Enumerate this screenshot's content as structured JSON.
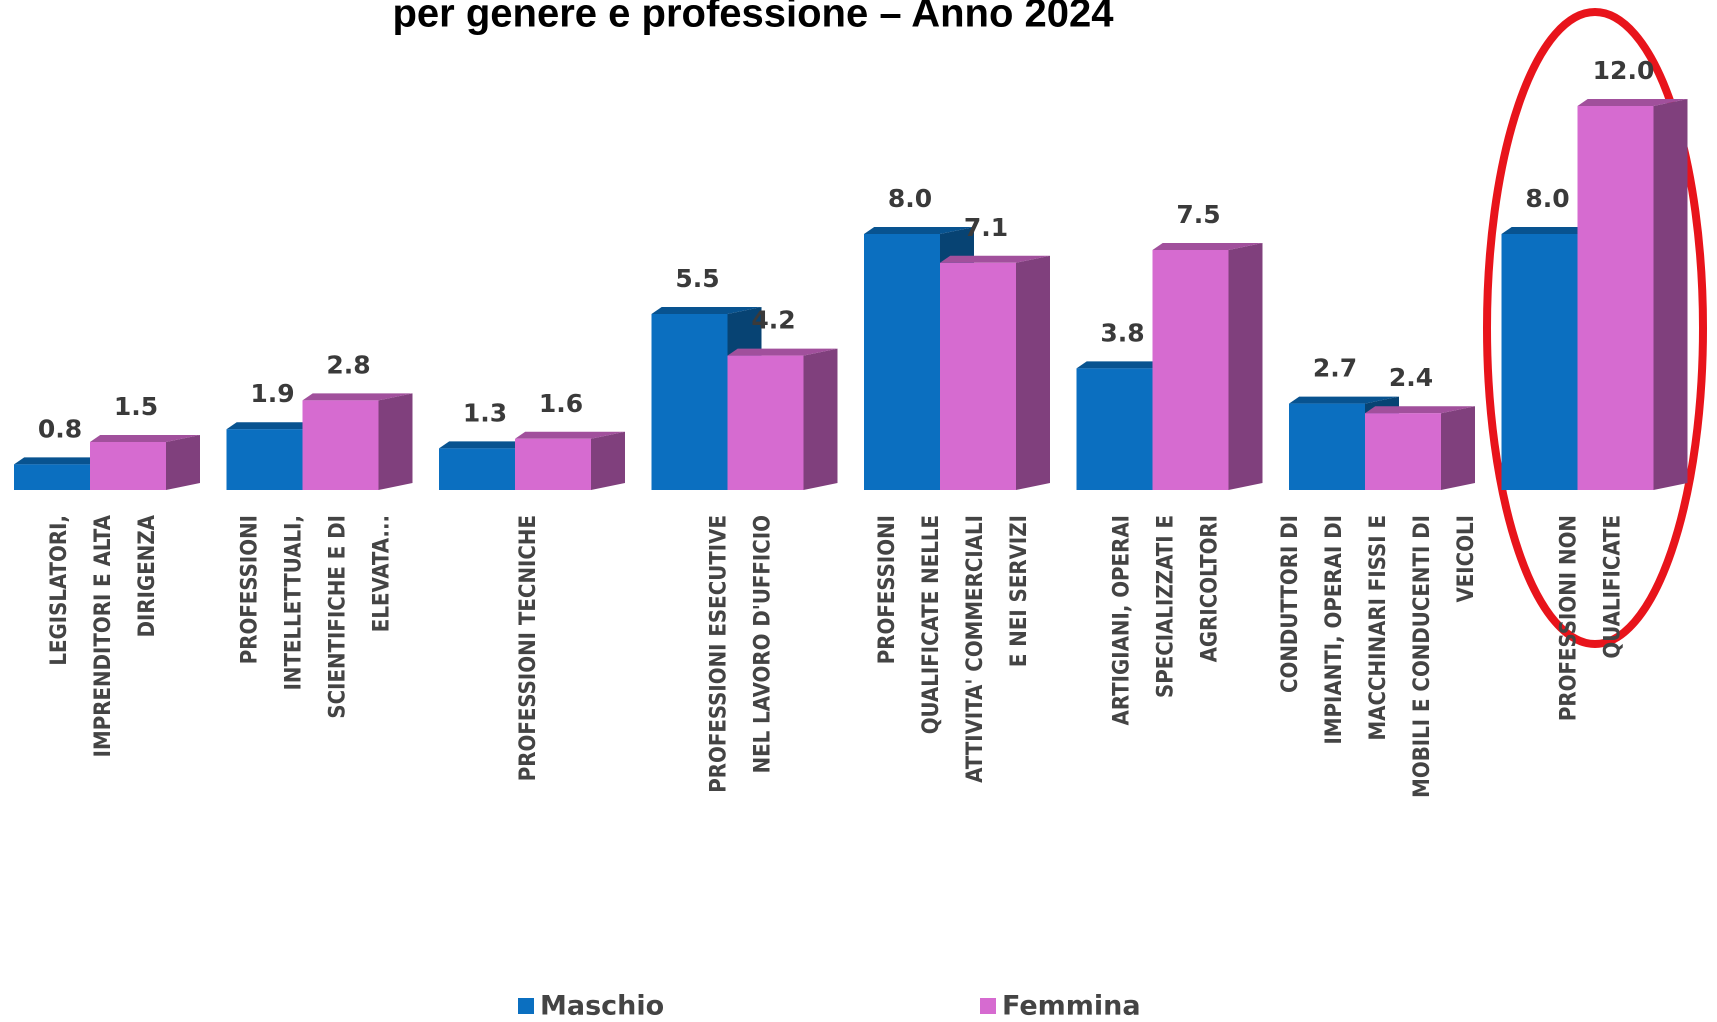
{
  "chart_data": {
    "type": "bar3d",
    "title": "per genere e professione – Anno 2024",
    "categories": [
      "LEGISLATORI, IMPRENDITORI E ALTA DIRIGENZA",
      "PROFESSIONI INTELLETTUALI, SCIENTIFICHE E DI ELEVATA...",
      "PROFESSIONI TECNICHE",
      "PROFESSIONI ESECUTIVE NEL LAVORO D'UFFICIO",
      "PROFESSIONI QUALIFICATE NELLE ATTIVITA' COMMERCIALI E NEI SERVIZI",
      "ARTIGIANI, OPERAI SPECIALIZZATI E AGRICOLTORI",
      "CONDUTTORI DI IMPIANTI, OPERAI DI MACCHINARI FISSI E MOBILI E CONDUCENTI DI VEICOLI",
      "PROFESSIONI NON QUALIFICATE"
    ],
    "series": [
      {
        "name": "Maschio",
        "color": "#0b6fc0",
        "values": [
          0.8,
          1.9,
          1.3,
          5.5,
          8.0,
          3.8,
          2.7,
          8.0
        ],
        "value_labels": [
          "0.8",
          "1.9",
          "1.3",
          "5.5",
          "8.0",
          "3.8",
          "2.7",
          "8.0"
        ]
      },
      {
        "name": "Femmina",
        "color": "#d66bd0",
        "values": [
          1.5,
          2.8,
          1.6,
          4.2,
          7.1,
          7.5,
          2.4,
          12.0
        ],
        "value_labels": [
          "1.5",
          "2.8",
          "1.6",
          "4.2",
          "7.1",
          "7.5",
          "2.4",
          "12.0"
        ]
      }
    ],
    "legend": "bottom"
  }
}
